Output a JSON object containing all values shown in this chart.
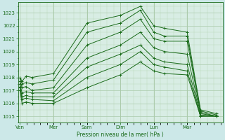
{
  "xlabel": "Pression niveau de la mer( hPa )",
  "bg_color": "#cce8e8",
  "plot_bg_color": "#d8ede4",
  "grid_color_major": "#aacaaa",
  "grid_color_minor": "#b8d8b8",
  "line_color": "#1a6b1a",
  "ylim": [
    1014.5,
    1023.8
  ],
  "xlim": [
    -0.05,
    5.05
  ],
  "yticks": [
    1015,
    1016,
    1017,
    1018,
    1019,
    1020,
    1021,
    1022,
    1023
  ],
  "x_labels": [
    "Ven",
    "Mer",
    "Sam",
    "Dim",
    "Lun",
    "Mar"
  ],
  "x_positions": [
    0.0,
    0.833,
    1.667,
    2.5,
    3.333,
    4.167
  ],
  "series_data": [
    {
      "x": [
        0.0,
        0.05,
        0.15,
        0.3,
        0.833,
        1.667,
        2.5,
        3.0,
        3.333,
        3.6,
        4.167,
        4.5,
        4.9
      ],
      "y": [
        1018.0,
        1017.7,
        1018.1,
        1018.0,
        1018.3,
        1022.2,
        1022.8,
        1023.5,
        1022.0,
        1021.8,
        1021.5,
        1015.5,
        1015.2
      ]
    },
    {
      "x": [
        0.0,
        0.05,
        0.15,
        0.3,
        0.833,
        1.667,
        2.5,
        3.0,
        3.333,
        3.6,
        4.167,
        4.5,
        4.9
      ],
      "y": [
        1018.0,
        1017.5,
        1017.6,
        1017.5,
        1017.8,
        1021.5,
        1022.2,
        1023.2,
        1021.5,
        1021.2,
        1021.2,
        1015.4,
        1015.1
      ]
    },
    {
      "x": [
        0.0,
        0.05,
        0.15,
        0.3,
        0.833,
        1.667,
        2.5,
        3.0,
        3.333,
        3.6,
        4.167,
        4.5,
        4.9
      ],
      "y": [
        1017.7,
        1017.2,
        1017.3,
        1017.0,
        1017.2,
        1020.5,
        1021.5,
        1022.5,
        1021.0,
        1020.8,
        1020.8,
        1015.3,
        1015.0
      ]
    },
    {
      "x": [
        0.0,
        0.05,
        0.15,
        0.3,
        0.833,
        1.667,
        2.5,
        3.0,
        3.333,
        3.6,
        4.167,
        4.5,
        4.9
      ],
      "y": [
        1017.5,
        1016.8,
        1016.9,
        1016.8,
        1016.8,
        1019.5,
        1020.5,
        1021.5,
        1020.3,
        1020.0,
        1019.8,
        1015.2,
        1015.0
      ]
    },
    {
      "x": [
        0.0,
        0.05,
        0.15,
        0.3,
        0.833,
        1.667,
        2.5,
        3.0,
        3.333,
        3.6,
        4.167,
        4.5,
        4.9
      ],
      "y": [
        1017.3,
        1016.5,
        1016.6,
        1016.5,
        1016.5,
        1018.8,
        1019.8,
        1020.5,
        1019.5,
        1019.2,
        1019.0,
        1015.1,
        1015.0
      ]
    },
    {
      "x": [
        0.0,
        0.05,
        0.15,
        0.3,
        0.833,
        1.667,
        2.5,
        3.0,
        3.333,
        3.6,
        4.167,
        4.5,
        4.9
      ],
      "y": [
        1017.2,
        1016.3,
        1016.4,
        1016.3,
        1016.2,
        1018.0,
        1019.0,
        1020.0,
        1019.0,
        1018.8,
        1018.5,
        1015.0,
        1015.0
      ]
    },
    {
      "x": [
        0.0,
        0.05,
        0.15,
        0.3,
        0.833,
        1.667,
        2.5,
        3.0,
        3.333,
        3.6,
        4.167,
        4.5,
        4.9
      ],
      "y": [
        1017.0,
        1016.0,
        1016.1,
        1016.0,
        1016.0,
        1017.2,
        1018.2,
        1019.2,
        1018.5,
        1018.3,
        1018.2,
        1015.0,
        1015.0
      ]
    }
  ]
}
